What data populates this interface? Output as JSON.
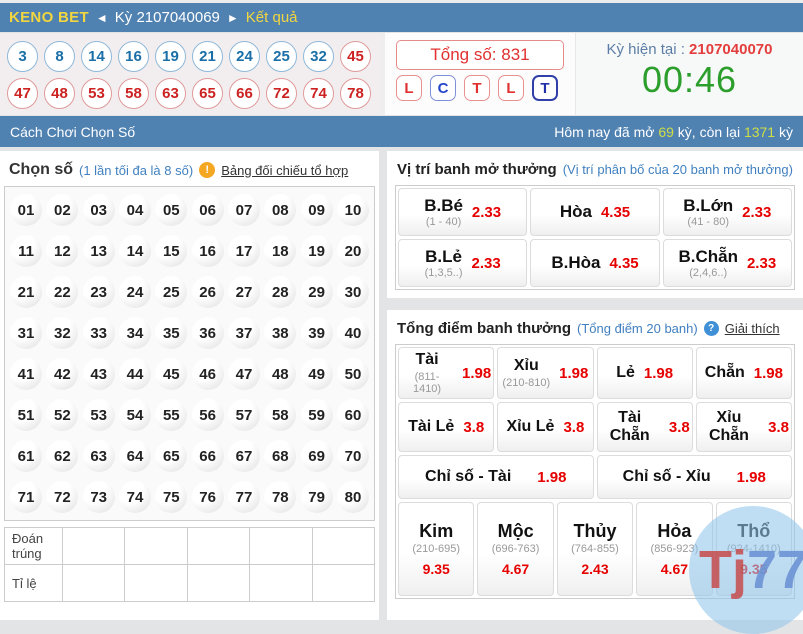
{
  "colors": {
    "header_blue": "#4f81b1",
    "accent_yellow": "#f2d63f",
    "highlight_lime": "#cfdf45",
    "odds_red": "#e60000",
    "countdown_green": "#2b9e2b",
    "link_blue": "#4080c0",
    "ball_blue": "#1a6fa8",
    "ball_red": "#cc2222"
  },
  "top_bar": {
    "title": "KENO BET",
    "prev_arrow": "◄",
    "period": "Kỳ 2107040069",
    "next_arrow": "►",
    "result_link": "Kết quả"
  },
  "results": {
    "balls": [
      {
        "n": "3",
        "c": "blue"
      },
      {
        "n": "8",
        "c": "blue"
      },
      {
        "n": "14",
        "c": "blue"
      },
      {
        "n": "16",
        "c": "blue"
      },
      {
        "n": "19",
        "c": "blue"
      },
      {
        "n": "21",
        "c": "blue"
      },
      {
        "n": "24",
        "c": "blue"
      },
      {
        "n": "25",
        "c": "blue"
      },
      {
        "n": "32",
        "c": "blue"
      },
      {
        "n": "45",
        "c": "red"
      },
      {
        "n": "47",
        "c": "red"
      },
      {
        "n": "48",
        "c": "red"
      },
      {
        "n": "53",
        "c": "red"
      },
      {
        "n": "58",
        "c": "red"
      },
      {
        "n": "63",
        "c": "red"
      },
      {
        "n": "65",
        "c": "red"
      },
      {
        "n": "66",
        "c": "red"
      },
      {
        "n": "72",
        "c": "red"
      },
      {
        "n": "74",
        "c": "red"
      },
      {
        "n": "78",
        "c": "red"
      }
    ],
    "total_label": "Tổng số: 831",
    "judges": [
      {
        "t": "L",
        "c": "red"
      },
      {
        "t": "C",
        "c": "blue"
      },
      {
        "t": "T",
        "c": "red"
      },
      {
        "t": "L",
        "c": "red"
      },
      {
        "t": "T",
        "c": "navy"
      }
    ],
    "current_period_label": "Kỳ hiện tại : ",
    "current_period_value": "2107040070",
    "countdown": "00:46"
  },
  "subheader": {
    "left": "Cách Chơi Chọn Số",
    "right_parts": [
      "Hôm nay đã mở ",
      "69",
      " kỳ, còn lại ",
      "1371",
      " kỳ"
    ]
  },
  "icons": {
    "warning": "!",
    "help": "?"
  },
  "left_panel": {
    "title": "Chọn số",
    "hint": "(1 lần tối đa là 8 số)",
    "link": "Bảng đối chiếu tổ hợp",
    "numbers": [
      "01",
      "02",
      "03",
      "04",
      "05",
      "06",
      "07",
      "08",
      "09",
      "10",
      "11",
      "12",
      "13",
      "14",
      "15",
      "16",
      "17",
      "18",
      "19",
      "20",
      "21",
      "22",
      "23",
      "24",
      "25",
      "26",
      "27",
      "28",
      "29",
      "30",
      "31",
      "32",
      "33",
      "34",
      "35",
      "36",
      "37",
      "38",
      "39",
      "40",
      "41",
      "42",
      "43",
      "44",
      "45",
      "46",
      "47",
      "48",
      "49",
      "50",
      "51",
      "52",
      "53",
      "54",
      "55",
      "56",
      "57",
      "58",
      "59",
      "60",
      "61",
      "62",
      "63",
      "64",
      "65",
      "66",
      "67",
      "68",
      "69",
      "70",
      "71",
      "72",
      "73",
      "74",
      "75",
      "76",
      "77",
      "78",
      "79",
      "80"
    ],
    "guess_table": {
      "rows": [
        {
          "label": "Đoán trúng",
          "cells": 5
        },
        {
          "label": "Tỉ lệ",
          "cells": 5
        }
      ]
    }
  },
  "position_section": {
    "title": "Vị trí banh mở thưởng",
    "subtitle": "(Vị trí phân bố của 20 banh mở thưởng)",
    "boxes": [
      {
        "name": "B.Bé",
        "range": "(1 - 40)",
        "odds": "2.33"
      },
      {
        "name": "Hòa",
        "range": "",
        "odds": "4.35"
      },
      {
        "name": "B.Lớn",
        "range": "(41 - 80)",
        "odds": "2.33"
      },
      {
        "name": "B.Lẻ",
        "range": "(1,3,5..)",
        "odds": "2.33"
      },
      {
        "name": "B.Hòa",
        "range": "",
        "odds": "4.35"
      },
      {
        "name": "B.Chẵn",
        "range": "(2,4,6..)",
        "odds": "2.33"
      }
    ]
  },
  "total_section": {
    "title": "Tổng điểm banh thưởng",
    "subtitle": "(Tổng điểm 20 banh)",
    "help_link": "Giải thích",
    "row1": [
      {
        "name": "Tài",
        "range": "(811-1410)",
        "odds": "1.98"
      },
      {
        "name": "Xỉu",
        "range": "(210-810)",
        "odds": "1.98"
      },
      {
        "name": "Lẻ",
        "range": "",
        "odds": "1.98"
      },
      {
        "name": "Chẵn",
        "range": "",
        "odds": "1.98"
      }
    ],
    "row2": [
      {
        "name": "Tài Lẻ",
        "range": "",
        "odds": "3.8"
      },
      {
        "name": "Xỉu Lẻ",
        "range": "",
        "odds": "3.8"
      },
      {
        "name": "Tài Chẵn",
        "range": "",
        "odds": "3.8"
      },
      {
        "name": "Xỉu Chẵn",
        "range": "",
        "odds": "3.8"
      }
    ],
    "row3": [
      {
        "name": "Chỉ số - Tài",
        "range": "",
        "odds": "1.98"
      },
      {
        "name": "Chỉ số - Xỉu",
        "range": "",
        "odds": "1.98"
      }
    ],
    "elements": [
      {
        "name": "Kim",
        "range": "(210-695)",
        "odds": "9.35"
      },
      {
        "name": "Mộc",
        "range": "(696-763)",
        "odds": "4.67"
      },
      {
        "name": "Thủy",
        "range": "(764-855)",
        "odds": "2.43"
      },
      {
        "name": "Hỏa",
        "range": "(856-923)",
        "odds": "4.67"
      },
      {
        "name": "Thổ",
        "range": "(924-1410)",
        "odds": "9.35"
      }
    ]
  },
  "watermark": {
    "part_red": "Tj",
    "part_blue": "77"
  }
}
